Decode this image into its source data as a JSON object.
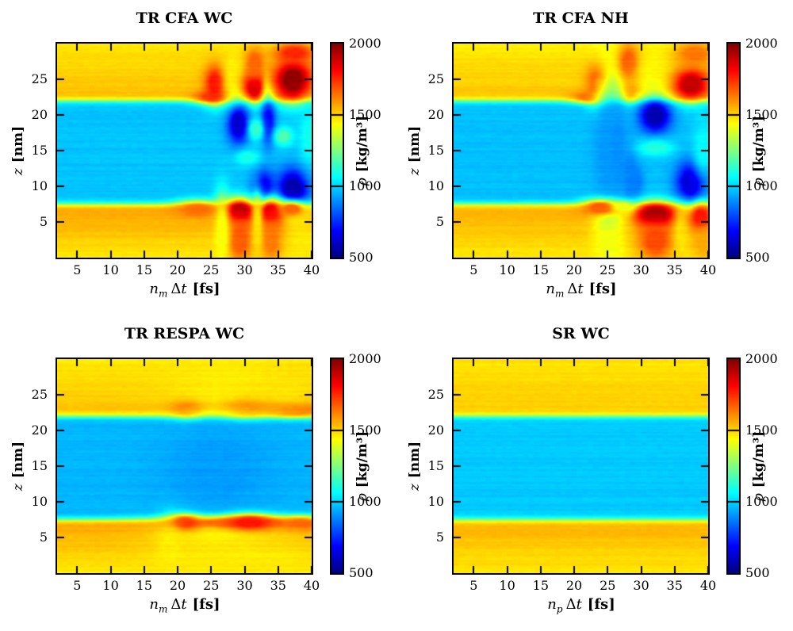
{
  "chart_data": {
    "type": "heatmap",
    "colormap": "jet",
    "value_range": [
      500,
      2000
    ],
    "x_range": [
      2,
      40
    ],
    "z_range": [
      0,
      30
    ],
    "z_interfaces": [
      7.5,
      22
    ],
    "x_tick_values": [
      5,
      10,
      15,
      20,
      25,
      30,
      35,
      40
    ],
    "x_tick_labels": [
      "5",
      "10",
      "15",
      "20",
      "25",
      "30",
      "35",
      "40"
    ],
    "y_tick_values": [
      5,
      10,
      15,
      20,
      25
    ],
    "y_tick_labels": [
      "5",
      "10",
      "15",
      "20",
      "25"
    ],
    "ylabel_var": "z",
    "ylabel_unit": "[nm]",
    "xlabel_delta": "Δ",
    "xlabel_t": "t",
    "xlabel_unit": "[fs]",
    "colorbar": {
      "symbol": "ρ",
      "unit": "[kg/m³]",
      "tick_values": [
        2000,
        1500,
        1000,
        500
      ],
      "tick_labels": [
        "2000",
        "1500",
        "1000",
        "500"
      ],
      "line_values": [
        1500,
        1000
      ]
    },
    "panels": [
      {
        "title": "TR CFA WC",
        "xlabel_var": "n",
        "xlabel_sub": "m",
        "xlabel_text": "n_m Δt [fs]",
        "bands": {
          "bottom_low": 1470,
          "bottom_high": 1575,
          "middle": 975,
          "top_high": 1545,
          "top_low": 1470
        },
        "features": [
          {
            "x": 25.0,
            "z": 22.5,
            "sx": 1.8,
            "sz": 0.6,
            "rho": 1700
          },
          {
            "x": 25.6,
            "z": 24.4,
            "sx": 1.1,
            "sz": 1.7,
            "rho": 1790
          },
          {
            "x": 28.5,
            "z": 26.0,
            "sx": 1.1,
            "sz": 3.0,
            "rho": 1460
          },
          {
            "x": 31.5,
            "z": 23.9,
            "sx": 1.2,
            "sz": 1.4,
            "rho": 1900
          },
          {
            "x": 31.5,
            "z": 27.2,
            "sx": 1.0,
            "sz": 1.6,
            "rho": 1660
          },
          {
            "x": 33.5,
            "z": 24.5,
            "sx": 0.5,
            "sz": 1.6,
            "rho": 1500
          },
          {
            "x": 37.2,
            "z": 24.9,
            "sx": 1.9,
            "sz": 1.9,
            "rho": 1975
          },
          {
            "x": 37.4,
            "z": 28.7,
            "sx": 1.9,
            "sz": 0.9,
            "rho": 1750
          },
          {
            "x": 29.1,
            "z": 18.7,
            "sx": 1.15,
            "sz": 1.9,
            "rho": 620
          },
          {
            "x": 33.5,
            "z": 19.0,
            "sx": 0.75,
            "sz": 2.2,
            "rho": 690
          },
          {
            "x": 31.7,
            "z": 18.0,
            "sx": 0.8,
            "sz": 1.1,
            "rho": 1130
          },
          {
            "x": 35.8,
            "z": 17.0,
            "sx": 1.0,
            "sz": 0.9,
            "rho": 1170
          },
          {
            "x": 30.5,
            "z": 14.0,
            "sx": 1.3,
            "sz": 0.8,
            "rho": 1090
          },
          {
            "x": 32.8,
            "z": 9.8,
            "sx": 1.15,
            "sz": 1.7,
            "rho": 660
          },
          {
            "x": 37.2,
            "z": 9.5,
            "sx": 1.6,
            "sz": 2.0,
            "rho": 560
          },
          {
            "x": 39.6,
            "z": 17.0,
            "sx": 1.0,
            "sz": 2.6,
            "rho": 1080
          },
          {
            "x": 23.0,
            "z": 6.8,
            "sx": 2.3,
            "sz": 0.8,
            "rho": 1650
          },
          {
            "x": 29.2,
            "z": 6.5,
            "sx": 1.6,
            "sz": 1.2,
            "rho": 1950
          },
          {
            "x": 33.9,
            "z": 6.3,
            "sx": 1.3,
            "sz": 1.3,
            "rho": 1910
          },
          {
            "x": 29.2,
            "z": 2.5,
            "sx": 1.4,
            "sz": 2.2,
            "rho": 1680
          },
          {
            "x": 34.0,
            "z": 2.5,
            "sx": 1.2,
            "sz": 2.2,
            "rho": 1640
          },
          {
            "x": 31.9,
            "z": 4.5,
            "sx": 0.55,
            "sz": 3.0,
            "rho": 1480
          },
          {
            "x": 26.6,
            "z": 3.5,
            "sx": 0.8,
            "sz": 3.5,
            "rho": 1430
          },
          {
            "x": 38.7,
            "z": 2.5,
            "sx": 1.6,
            "sz": 2.3,
            "rho": 1470
          },
          {
            "x": 37.0,
            "z": 6.8,
            "sx": 1.5,
            "sz": 0.8,
            "rho": 1660
          }
        ]
      },
      {
        "title": "TR CFA NH",
        "xlabel_var": "n",
        "xlabel_sub": "m",
        "xlabel_text": "n_m Δt [fs]",
        "bands": {
          "bottom_low": 1465,
          "bottom_high": 1560,
          "middle": 970,
          "top_high": 1530,
          "top_low": 1465
        },
        "features": [
          {
            "x": 22.5,
            "z": 22.5,
            "sx": 2.0,
            "sz": 0.55,
            "rho": 1660
          },
          {
            "x": 23.6,
            "z": 24.4,
            "sx": 1.2,
            "sz": 1.8,
            "rho": 1760
          },
          {
            "x": 28.2,
            "z": 27.2,
            "sx": 1.2,
            "sz": 1.9,
            "rho": 1720
          },
          {
            "x": 28.2,
            "z": 23.6,
            "sx": 1.0,
            "sz": 1.1,
            "rho": 1620
          },
          {
            "x": 32.0,
            "z": 26.0,
            "sx": 2.0,
            "sz": 2.3,
            "rho": 1445
          },
          {
            "x": 37.5,
            "z": 24.3,
            "sx": 1.8,
            "sz": 1.5,
            "rho": 1905
          },
          {
            "x": 38.0,
            "z": 28.6,
            "sx": 2.0,
            "sz": 1.1,
            "rho": 1640
          },
          {
            "x": 25.0,
            "z": 15.0,
            "sx": 1.5,
            "sz": 6.0,
            "rho": 915
          },
          {
            "x": 26.6,
            "z": 15.0,
            "sx": 0.8,
            "sz": 4.0,
            "rho": 900
          },
          {
            "x": 28.3,
            "z": 12.0,
            "sx": 0.8,
            "sz": 3.0,
            "rho": 890
          },
          {
            "x": 32.1,
            "z": 19.9,
            "sx": 1.6,
            "sz": 1.6,
            "rho": 570
          },
          {
            "x": 29.2,
            "z": 10.6,
            "sx": 0.9,
            "sz": 1.6,
            "rho": 870
          },
          {
            "x": 37.4,
            "z": 10.4,
            "sx": 1.5,
            "sz": 2.1,
            "rho": 620
          },
          {
            "x": 32.2,
            "z": 15.4,
            "sx": 1.9,
            "sz": 0.8,
            "rho": 1110
          },
          {
            "x": 39.3,
            "z": 15.5,
            "sx": 1.1,
            "sz": 2.6,
            "rho": 1060
          },
          {
            "x": 24.0,
            "z": 7.0,
            "sx": 2.0,
            "sz": 0.8,
            "rho": 1680
          },
          {
            "x": 32.2,
            "z": 6.0,
            "sx": 2.1,
            "sz": 1.2,
            "rho": 1970
          },
          {
            "x": 32.2,
            "z": 2.4,
            "sx": 1.8,
            "sz": 1.9,
            "rho": 1700
          },
          {
            "x": 25.3,
            "z": 1.5,
            "sx": 1.3,
            "sz": 1.8,
            "rho": 1420
          },
          {
            "x": 27.3,
            "z": 7.2,
            "sx": 1.1,
            "sz": 0.5,
            "rho": 1420
          },
          {
            "x": 36.2,
            "z": 3.5,
            "sx": 0.9,
            "sz": 2.2,
            "rho": 1470
          },
          {
            "x": 38.9,
            "z": 5.6,
            "sx": 1.2,
            "sz": 1.4,
            "rho": 1790
          },
          {
            "x": 39.3,
            "z": 2.0,
            "sx": 1.2,
            "sz": 1.5,
            "rho": 1560
          }
        ]
      },
      {
        "title": "TR RESPA WC",
        "xlabel_var": "n",
        "xlabel_sub": "m",
        "xlabel_text": "n_m Δt [fs]",
        "bands": {
          "bottom_low": 1460,
          "bottom_high": 1570,
          "middle": 955,
          "top_high": 1530,
          "top_low": 1470
        },
        "features": [
          {
            "x": 29.5,
            "z": 23.1,
            "sx": 8.5,
            "sz": 0.75,
            "rho": 1610
          },
          {
            "x": 21.5,
            "z": 23.0,
            "sx": 1.7,
            "sz": 0.8,
            "rho": 1700
          },
          {
            "x": 29.8,
            "z": 23.0,
            "sx": 2.2,
            "sz": 0.8,
            "rho": 1690
          },
          {
            "x": 37.5,
            "z": 22.8,
            "sx": 2.5,
            "sz": 0.6,
            "rho": 1640
          },
          {
            "x": 28.0,
            "z": 28.6,
            "sx": 6.0,
            "sz": 1.3,
            "rho": 1470
          },
          {
            "x": 37.0,
            "z": 27.0,
            "sx": 2.2,
            "sz": 1.8,
            "rho": 1480
          },
          {
            "x": 26.0,
            "z": 14.5,
            "sx": 6.0,
            "sz": 4.5,
            "rho": 920
          },
          {
            "x": 29.8,
            "z": 7.1,
            "sx": 8.5,
            "sz": 0.65,
            "rho": 1640
          },
          {
            "x": 21.0,
            "z": 7.1,
            "sx": 1.6,
            "sz": 0.75,
            "rho": 1740
          },
          {
            "x": 30.8,
            "z": 7.1,
            "sx": 2.3,
            "sz": 0.75,
            "rho": 1790
          },
          {
            "x": 38.5,
            "z": 7.0,
            "sx": 1.8,
            "sz": 0.6,
            "rho": 1660
          },
          {
            "x": 30.0,
            "z": 1.5,
            "sx": 8.0,
            "sz": 2.0,
            "rho": 1465
          },
          {
            "x": 18.8,
            "z": 3.0,
            "sx": 1.3,
            "sz": 2.6,
            "rho": 1460
          }
        ]
      },
      {
        "title": "SR WC",
        "xlabel_var": "n",
        "xlabel_sub": "p",
        "xlabel_text": "n_p Δt [fs]",
        "bands": {
          "bottom_low": 1470,
          "bottom_high": 1550,
          "middle": 985,
          "top_high": 1520,
          "top_low": 1475
        },
        "features": []
      }
    ]
  }
}
